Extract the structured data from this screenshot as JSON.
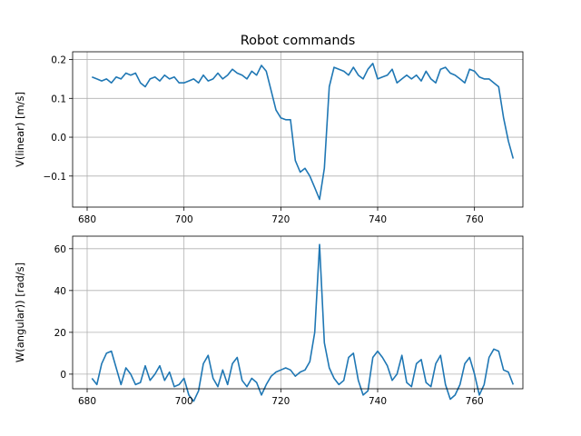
{
  "figure": {
    "title": "Robot commands"
  },
  "chart_data": [
    {
      "type": "line",
      "title": "Robot commands",
      "xlabel": "",
      "ylabel": "V(linear) [m/s]",
      "xlim": [
        677,
        770
      ],
      "ylim": [
        -0.18,
        0.22
      ],
      "xticks": [
        680,
        700,
        720,
        740,
        760
      ],
      "yticks": [
        -0.1,
        0.0,
        0.1,
        0.2
      ],
      "ytick_labels": [
        "−0.1",
        "0.0",
        "0.1",
        "0.2"
      ],
      "grid": true,
      "color": "#1f77b4",
      "series": [
        {
          "x": [
            681,
            682,
            683,
            684,
            685,
            686,
            687,
            688,
            689,
            690,
            691,
            692,
            693,
            694,
            695,
            696,
            697,
            698,
            699,
            700,
            701,
            702,
            703,
            704,
            705,
            706,
            707,
            708,
            709,
            710,
            711,
            712,
            713,
            714,
            715,
            716,
            717,
            718,
            719,
            720,
            721,
            722,
            723,
            724,
            725,
            726,
            727,
            728,
            729,
            730,
            731,
            732,
            733,
            734,
            735,
            736,
            737,
            738,
            739,
            740,
            741,
            742,
            743,
            744,
            745,
            746,
            747,
            748,
            749,
            750,
            751,
            752,
            753,
            754,
            755,
            756,
            757,
            758,
            759,
            760,
            761,
            762,
            763,
            764,
            765,
            766,
            767,
            768
          ],
          "y": [
            0.155,
            0.15,
            0.145,
            0.15,
            0.14,
            0.155,
            0.15,
            0.165,
            0.16,
            0.165,
            0.14,
            0.13,
            0.15,
            0.155,
            0.145,
            0.16,
            0.15,
            0.155,
            0.14,
            0.14,
            0.145,
            0.15,
            0.14,
            0.16,
            0.145,
            0.15,
            0.165,
            0.15,
            0.16,
            0.175,
            0.165,
            0.16,
            0.15,
            0.17,
            0.16,
            0.185,
            0.17,
            0.12,
            0.07,
            0.05,
            0.045,
            0.045,
            -0.06,
            -0.09,
            -0.08,
            -0.1,
            -0.13,
            -0.16,
            -0.08,
            0.13,
            0.18,
            0.175,
            0.17,
            0.16,
            0.18,
            0.16,
            0.15,
            0.175,
            0.19,
            0.15,
            0.155,
            0.16,
            0.175,
            0.14,
            0.15,
            0.16,
            0.15,
            0.16,
            0.145,
            0.17,
            0.15,
            0.14,
            0.175,
            0.18,
            0.165,
            0.16,
            0.15,
            0.14,
            0.175,
            0.17,
            0.155,
            0.15,
            0.15,
            0.14,
            0.13,
            0.05,
            -0.01,
            -0.055
          ]
        }
      ]
    },
    {
      "type": "line",
      "title": "",
      "xlabel": "",
      "ylabel": "W(angular)) [rad/s]",
      "xlim": [
        677,
        770
      ],
      "ylim": [
        -7,
        66
      ],
      "xticks": [
        680,
        700,
        720,
        740,
        760
      ],
      "yticks": [
        0,
        20,
        40,
        60
      ],
      "ytick_labels": [
        "0",
        "20",
        "40",
        "60"
      ],
      "grid": true,
      "color": "#1f77b4",
      "series": [
        {
          "x": [
            681,
            682,
            683,
            684,
            685,
            686,
            687,
            688,
            689,
            690,
            691,
            692,
            693,
            694,
            695,
            696,
            697,
            698,
            699,
            700,
            701,
            702,
            703,
            704,
            705,
            706,
            707,
            708,
            709,
            710,
            711,
            712,
            713,
            714,
            715,
            716,
            717,
            718,
            719,
            720,
            721,
            722,
            723,
            724,
            725,
            726,
            727,
            728,
            729,
            730,
            731,
            732,
            733,
            734,
            735,
            736,
            737,
            738,
            739,
            740,
            741,
            742,
            743,
            744,
            745,
            746,
            747,
            748,
            749,
            750,
            751,
            752,
            753,
            754,
            755,
            756,
            757,
            758,
            759,
            760,
            761,
            762,
            763,
            764,
            765,
            766,
            767,
            768
          ],
          "y": [
            -2,
            -5,
            5,
            10,
            11,
            3,
            -5,
            3,
            0,
            -5,
            -4,
            4,
            -3,
            0,
            4,
            -3,
            1,
            -6,
            -5,
            -2,
            -10,
            -13,
            -8,
            5,
            9,
            -2,
            -6,
            2,
            -5,
            5,
            8,
            -3,
            -6,
            -2,
            -4,
            -10,
            -5,
            -1,
            1,
            2,
            3,
            2,
            -1,
            1,
            2,
            6,
            20,
            62,
            15,
            3,
            -2,
            -5,
            -3,
            8,
            10,
            -3,
            -10,
            -8,
            8,
            11,
            8,
            4,
            -3,
            0,
            9,
            -4,
            -6,
            5,
            7,
            -4,
            -6,
            5,
            9,
            -5,
            -12,
            -10,
            -5,
            5,
            8,
            0,
            -10,
            -5,
            8,
            12,
            11,
            2,
            1,
            -5
          ]
        }
      ]
    }
  ]
}
